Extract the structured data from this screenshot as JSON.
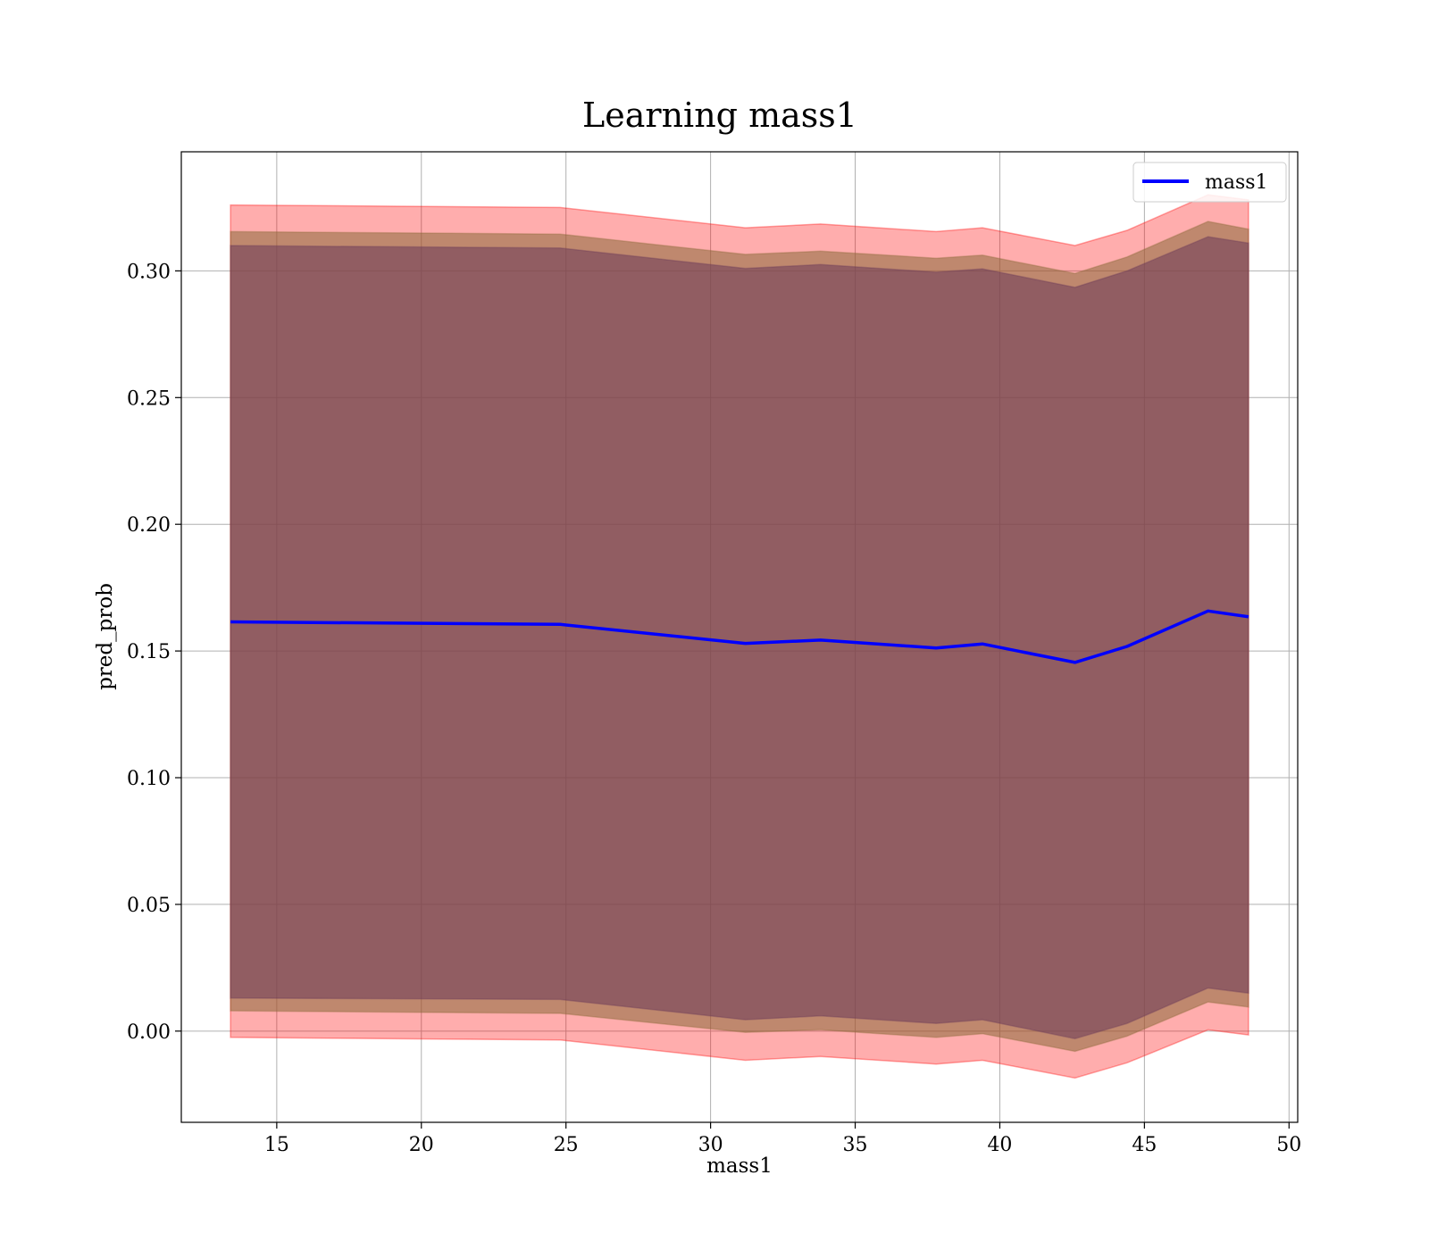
{
  "chart_data": {
    "type": "line",
    "title": "Learning mass1",
    "xlabel": "mass1",
    "ylabel": "pred_prob",
    "xlim": [
      11.7,
      50.3
    ],
    "ylim": [
      -0.036,
      0.347
    ],
    "xticks": [
      15,
      20,
      25,
      30,
      35,
      40,
      45,
      50
    ],
    "xtick_labels": [
      "15",
      "20",
      "25",
      "30",
      "35",
      "40",
      "45",
      "50"
    ],
    "yticks": [
      0.0,
      0.05,
      0.1,
      0.15,
      0.2,
      0.25,
      0.3
    ],
    "ytick_labels": [
      "0.00",
      "0.05",
      "0.10",
      "0.15",
      "0.20",
      "0.25",
      "0.30"
    ],
    "grid": true,
    "legend_position": "top-right",
    "series": [
      {
        "name": "mass1",
        "color": "#0000ff",
        "x": [
          13.4,
          24.8,
          31.2,
          33.8,
          37.8,
          39.4,
          42.6,
          44.4,
          47.2,
          48.6
        ],
        "y": [
          0.1615,
          0.1605,
          0.153,
          0.1543,
          0.1512,
          0.1528,
          0.1455,
          0.1518,
          0.1658,
          0.1635
        ]
      }
    ],
    "bands": [
      {
        "color": "#ff0000",
        "opacity": 0.32,
        "x": [
          13.4,
          24.8,
          31.2,
          33.8,
          37.8,
          39.4,
          42.6,
          44.4,
          47.2,
          48.6
        ],
        "lower": [
          -0.0025,
          -0.0035,
          -0.0115,
          -0.01,
          -0.013,
          -0.0115,
          -0.0185,
          -0.0125,
          0.0005,
          -0.0015
        ],
        "upper": [
          0.326,
          0.325,
          0.317,
          0.3185,
          0.3155,
          0.317,
          0.31,
          0.316,
          0.33,
          0.328
        ]
      },
      {
        "color": "#8b6a3a",
        "opacity": 0.55,
        "x": [
          13.4,
          24.8,
          31.2,
          33.8,
          37.8,
          39.4,
          42.6,
          44.4,
          47.2,
          48.6
        ],
        "lower": [
          0.008,
          0.007,
          -0.0005,
          0.0005,
          -0.0025,
          -0.001,
          -0.008,
          -0.002,
          0.0115,
          0.0095
        ],
        "upper": [
          0.3155,
          0.3145,
          0.3065,
          0.3078,
          0.305,
          0.3062,
          0.299,
          0.3055,
          0.3195,
          0.3165
        ]
      },
      {
        "color": "#6b3a5a",
        "opacity": 0.55,
        "x": [
          13.4,
          24.8,
          31.2,
          33.8,
          37.8,
          39.4,
          42.6,
          44.4,
          47.2,
          48.6
        ],
        "lower": [
          0.013,
          0.0125,
          0.0045,
          0.006,
          0.003,
          0.0045,
          -0.003,
          0.003,
          0.017,
          0.015
        ],
        "upper": [
          0.31,
          0.309,
          0.301,
          0.3025,
          0.2995,
          0.3008,
          0.2935,
          0.3,
          0.3135,
          0.311
        ]
      }
    ]
  }
}
